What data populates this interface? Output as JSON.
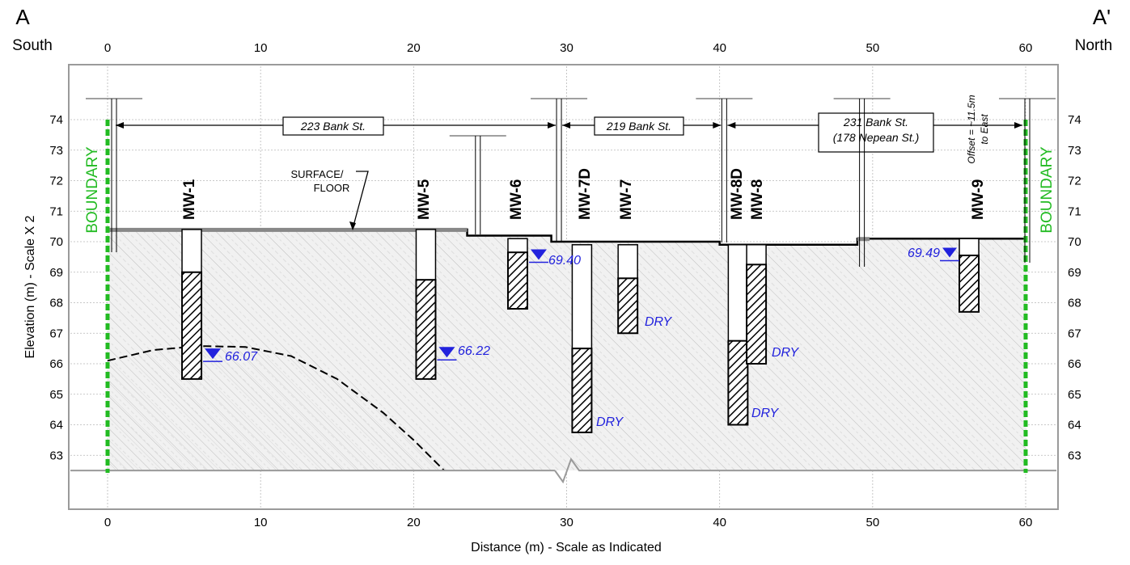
{
  "section": {
    "start_label": "A",
    "end_label": "A'",
    "start_direction": "South",
    "end_direction": "North"
  },
  "axes": {
    "x_label": "Distance (m) - Scale as Indicated",
    "y_label": "Elevation (m) - Scale X 2",
    "x_ticks": [
      "0",
      "10",
      "20",
      "30",
      "40",
      "50",
      "60"
    ],
    "y_ticks": [
      "74",
      "73",
      "72",
      "71",
      "70",
      "69",
      "68",
      "67",
      "66",
      "65",
      "64",
      "63"
    ]
  },
  "boundary_label": "BOUNDARY",
  "surface_label_line1": "SURFACE/",
  "surface_label_line2": "FLOOR",
  "properties": [
    {
      "lines": [
        "223 Bank St."
      ]
    },
    {
      "lines": [
        "219 Bank St."
      ]
    },
    {
      "lines": [
        "231 Bank St.",
        "(178 Nepean St.)"
      ]
    }
  ],
  "offset_note": [
    "Offset = ~11.5m",
    "to East"
  ],
  "wells": [
    {
      "name": "MW-1"
    },
    {
      "name": "MW-5"
    },
    {
      "name": "MW-6"
    },
    {
      "name": "MW-7D"
    },
    {
      "name": "MW-7"
    },
    {
      "name": "MW-8D"
    },
    {
      "name": "MW-8"
    },
    {
      "name": "MW-9"
    }
  ],
  "water_levels": [
    {
      "well": "MW-1",
      "label": "66.07"
    },
    {
      "well": "MW-5",
      "label": "66.22"
    },
    {
      "well": "MW-6",
      "label": "69.40"
    },
    {
      "well": "MW-9",
      "label": "69.49"
    }
  ],
  "dry_labels": [
    {
      "well": "MW-7D",
      "label": "DRY"
    },
    {
      "well": "MW-7",
      "label": "DRY"
    },
    {
      "well": "MW-8D",
      "label": "DRY"
    },
    {
      "well": "MW-8",
      "label": "DRY"
    }
  ],
  "colors": {
    "boundary": "#22bb22",
    "water": "#2222dd",
    "ground_fill": "#ececec"
  }
}
